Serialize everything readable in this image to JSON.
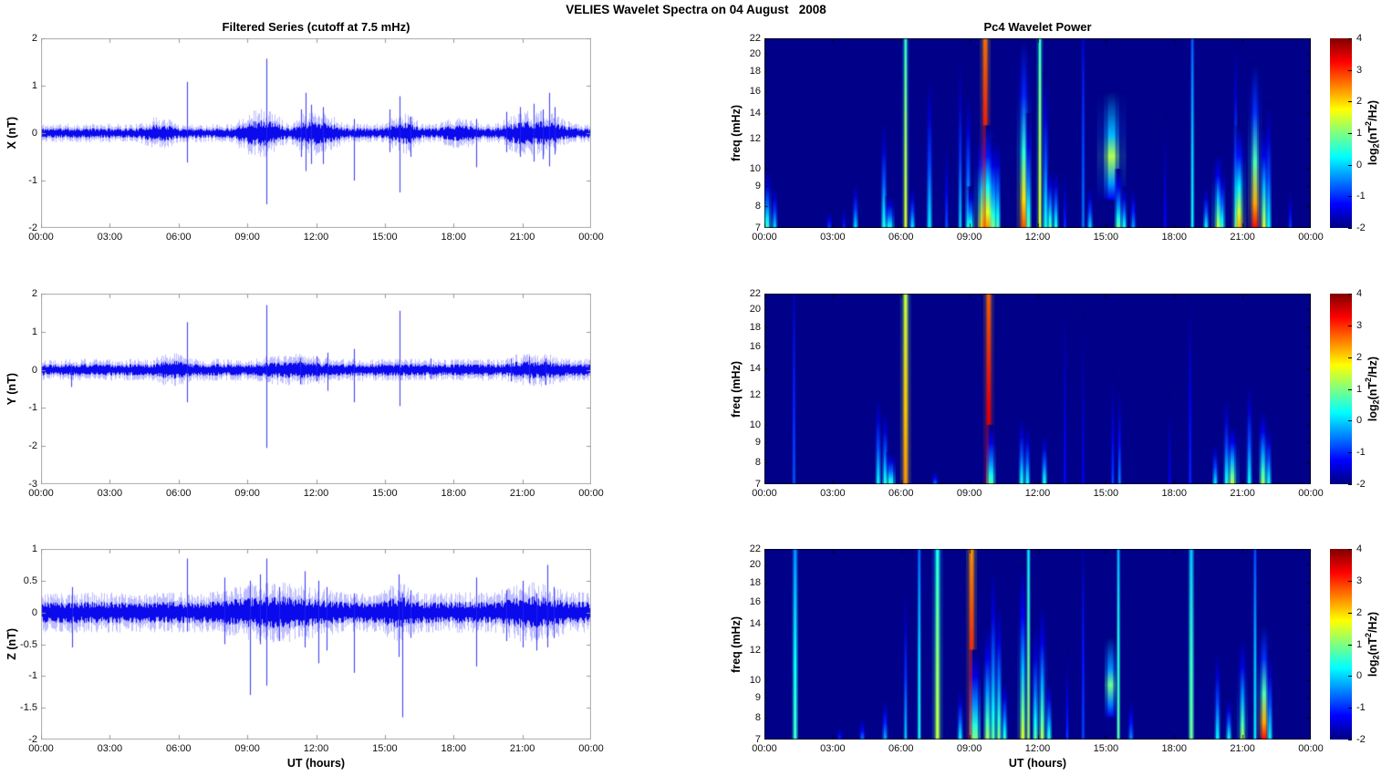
{
  "figure_title": "VELIES Wavelet Spectra on 04 August   2008",
  "left": {
    "title": "Filtered Series (cutoff at 7.5 mHz)",
    "xlabel": "UT (hours)"
  },
  "right": {
    "title": "Pc4 Wavelet Power",
    "xlabel": "UT (hours)",
    "ylabel": "freq (mHz)"
  },
  "xticks": {
    "hours": [
      0,
      3,
      6,
      9,
      12,
      15,
      18,
      21,
      24
    ],
    "labels": [
      "00:00",
      "03:00",
      "06:00",
      "09:00",
      "12:00",
      "15:00",
      "18:00",
      "21:00",
      "00:00"
    ]
  },
  "colorbar": {
    "label_prefix": "log",
    "label_sub": "2",
    "label_mid": "(nT",
    "label_sup": "2",
    "label_suffix": "/Hz)",
    "ticks": [
      4,
      3,
      2,
      1,
      0,
      -1,
      -2
    ],
    "range": [
      -2,
      4
    ],
    "gradient": [
      [
        "#000080",
        0
      ],
      [
        "#0000ff",
        12.5
      ],
      [
        "#00ffff",
        37.5
      ],
      [
        "#ffff00",
        62.5
      ],
      [
        "#ff0000",
        87.5
      ],
      [
        "#800000",
        100
      ]
    ]
  },
  "colors": {
    "series": "#0000ee",
    "axis_frame": "#aaaaaa",
    "spectrogram_bg": "#000091",
    "tick_text": "#111111"
  },
  "chart_data": [
    {
      "type": "line",
      "component": "X",
      "title": "Filtered Series (cutoff at 7.5 mHz)",
      "ylabel": "X (nT)",
      "ylim": [
        -2,
        2
      ],
      "yticks": [
        2,
        1,
        0,
        -1,
        -2
      ],
      "xlabel": "",
      "units": "nT",
      "noise": {
        "seed": 11,
        "base": 0.075,
        "bumps": [
          [
            4.3,
            6.0,
            0.055
          ],
          [
            8.3,
            10.8,
            0.12
          ],
          [
            10.8,
            13.2,
            0.11
          ],
          [
            15.0,
            16.6,
            0.09
          ],
          [
            17.3,
            19.2,
            0.05
          ],
          [
            19.8,
            23.2,
            0.11
          ]
        ]
      },
      "spike_fields": "[t_hours, max_nT, min_nT]",
      "spikes": [
        [
          6.35,
          1.08,
          -0.62
        ],
        [
          9.85,
          1.57,
          -1.5
        ],
        [
          11.35,
          0.5,
          -0.5
        ],
        [
          11.55,
          0.85,
          -0.8
        ],
        [
          11.8,
          0.6,
          -0.65
        ],
        [
          12.3,
          0.55,
          -0.65
        ],
        [
          13.65,
          0.3,
          -1.0
        ],
        [
          15.2,
          0.5,
          -0.4
        ],
        [
          15.65,
          0.78,
          -1.25
        ],
        [
          16.1,
          0.35,
          -0.5
        ],
        [
          19.0,
          0.3,
          -0.72
        ],
        [
          20.3,
          0.45,
          -0.4
        ],
        [
          20.9,
          0.55,
          -0.5
        ],
        [
          21.5,
          0.62,
          -0.6
        ],
        [
          21.9,
          0.5,
          -0.55
        ],
        [
          22.15,
          0.85,
          -0.7
        ],
        [
          22.4,
          0.55,
          -0.45
        ]
      ]
    },
    {
      "type": "line",
      "component": "Y",
      "title": "",
      "ylabel": "Y (nT)",
      "ylim": [
        -3,
        2
      ],
      "yticks": [
        2,
        1,
        0,
        -1,
        -2,
        -3
      ],
      "xlabel": "",
      "units": "nT",
      "noise": {
        "seed": 22,
        "base": 0.11,
        "bumps": [
          [
            4.8,
            6.6,
            0.06
          ],
          [
            9.3,
            12.8,
            0.05
          ],
          [
            20.0,
            23.0,
            0.06
          ]
        ]
      },
      "spike_fields": "[t_hours, max_nT, min_nT]",
      "spikes": [
        [
          1.3,
          0.15,
          -0.45
        ],
        [
          6.35,
          1.25,
          -0.85
        ],
        [
          9.85,
          1.7,
          -2.05
        ],
        [
          11.3,
          0.32,
          -0.38
        ],
        [
          12.0,
          0.35,
          -0.3
        ],
        [
          12.5,
          0.45,
          -0.55
        ],
        [
          13.65,
          0.55,
          -0.85
        ],
        [
          15.65,
          1.55,
          -0.95
        ],
        [
          17.0,
          0.3,
          -0.25
        ],
        [
          20.5,
          0.3,
          -0.3
        ],
        [
          21.3,
          0.35,
          -0.35
        ],
        [
          22.0,
          0.3,
          -0.4
        ]
      ]
    },
    {
      "type": "line",
      "component": "Z",
      "title": "",
      "ylabel": "Z (nT)",
      "ylim": [
        -2,
        1
      ],
      "yticks": [
        1,
        0.5,
        0,
        -0.5,
        -1,
        -1.5,
        -2
      ],
      "xlabel": "UT (hours)",
      "units": "nT",
      "noise": {
        "seed": 33,
        "base": 0.12,
        "bumps": [
          [
            7.5,
            13.0,
            0.06
          ],
          [
            14.8,
            16.5,
            0.055
          ],
          [
            19.8,
            23.0,
            0.06
          ]
        ]
      },
      "spike_fields": "[t_hours, max_nT, min_nT]",
      "spikes": [
        [
          1.35,
          0.4,
          -0.55
        ],
        [
          6.35,
          0.85,
          -0.3
        ],
        [
          8.0,
          0.55,
          -0.5
        ],
        [
          9.1,
          0.5,
          -1.3
        ],
        [
          9.55,
          0.6,
          -0.5
        ],
        [
          9.85,
          0.85,
          -1.15
        ],
        [
          10.4,
          0.4,
          -0.45
        ],
        [
          11.5,
          0.65,
          -0.55
        ],
        [
          12.1,
          0.5,
          -0.8
        ],
        [
          12.45,
          0.4,
          -0.6
        ],
        [
          13.65,
          0.3,
          -0.95
        ],
        [
          15.6,
          0.6,
          -0.7
        ],
        [
          15.75,
          0.3,
          -1.65
        ],
        [
          16.1,
          0.35,
          -0.4
        ],
        [
          19.0,
          0.55,
          -0.85
        ],
        [
          20.3,
          0.35,
          -0.45
        ],
        [
          21.0,
          0.5,
          -0.55
        ],
        [
          21.6,
          0.3,
          -0.6
        ],
        [
          22.1,
          0.75,
          -0.55
        ],
        [
          22.35,
          0.4,
          -0.4
        ]
      ]
    },
    {
      "type": "heatmap",
      "component": "X",
      "title": "Pc4 Wavelet Power",
      "ylabel": "freq (mHz)",
      "flim": [
        7,
        22
      ],
      "fticks": [
        22,
        20,
        18,
        16,
        14,
        12,
        10,
        9,
        8,
        7
      ],
      "clim": [
        -2,
        4
      ],
      "yscale": "log",
      "streak_fields": "[t_hours, f_top_mHz, peak_log2_power, width_px, kind(t=taper,l=full-line,b=blob), f_bottom_mHz?]",
      "streaks": [
        [
          0.1,
          10,
          0.6,
          5,
          "t"
        ],
        [
          0.45,
          9,
          0.1,
          3,
          "t"
        ],
        [
          2.85,
          7.8,
          -0.8,
          3,
          "t"
        ],
        [
          3.5,
          8,
          -0.9,
          2,
          "t"
        ],
        [
          4.0,
          9.2,
          0.1,
          3,
          "t"
        ],
        [
          5.25,
          13.5,
          0.5,
          3,
          "t"
        ],
        [
          5.5,
          8.5,
          0.4,
          5,
          "t"
        ],
        [
          6.2,
          22,
          1.6,
          2,
          "l"
        ],
        [
          6.5,
          9,
          0.2,
          3,
          "t"
        ],
        [
          7.25,
          18,
          0.2,
          3,
          "t"
        ],
        [
          8.0,
          12,
          -0.7,
          2,
          "t"
        ],
        [
          8.6,
          20,
          0.1,
          2,
          "t"
        ],
        [
          8.95,
          16,
          0.4,
          3,
          "t"
        ],
        [
          9.05,
          9,
          0.6,
          4,
          "t"
        ],
        [
          9.6,
          12,
          2.0,
          5,
          "t"
        ],
        [
          9.7,
          22,
          3.6,
          3,
          "l"
        ],
        [
          9.85,
          13,
          2.4,
          6,
          "t"
        ],
        [
          10.05,
          12,
          1.0,
          4,
          "t"
        ],
        [
          10.25,
          12,
          0.7,
          3,
          "t"
        ],
        [
          11.4,
          22,
          2.8,
          4,
          "t"
        ],
        [
          11.6,
          14,
          0.8,
          3,
          "t"
        ],
        [
          12.1,
          22,
          1.6,
          2,
          "l"
        ],
        [
          12.35,
          18,
          0.4,
          3,
          "t"
        ],
        [
          12.55,
          10,
          0.8,
          3,
          "t"
        ],
        [
          12.8,
          10,
          0.5,
          3,
          "t"
        ],
        [
          13.2,
          10,
          -0.9,
          2,
          "t"
        ],
        [
          14.0,
          22,
          -0.5,
          2,
          "l"
        ],
        [
          14.3,
          9,
          0.1,
          3,
          "t"
        ],
        [
          15.25,
          16,
          1.3,
          8,
          "b",
          8.3
        ],
        [
          15.55,
          10,
          0.9,
          4,
          "t"
        ],
        [
          15.8,
          9,
          0.5,
          3,
          "t"
        ],
        [
          16.2,
          9,
          -0.3,
          3,
          "t"
        ],
        [
          17.6,
          14,
          -1.2,
          2,
          "t"
        ],
        [
          18.8,
          22,
          0.3,
          2,
          "l"
        ],
        [
          19.4,
          9,
          0.3,
          3,
          "t"
        ],
        [
          19.95,
          11,
          1.5,
          4,
          "t"
        ],
        [
          20.1,
          10,
          0.6,
          3,
          "t"
        ],
        [
          20.7,
          22,
          0.4,
          2,
          "t"
        ],
        [
          20.85,
          13,
          2.2,
          4,
          "t"
        ],
        [
          21.55,
          19,
          3.2,
          4,
          "t"
        ],
        [
          21.95,
          13,
          1.6,
          3,
          "t"
        ],
        [
          22.15,
          15,
          0.3,
          3,
          "t"
        ],
        [
          23.1,
          9,
          -0.8,
          2,
          "t"
        ]
      ]
    },
    {
      "type": "heatmap",
      "component": "Y",
      "title": "",
      "ylabel": "freq (mHz)",
      "flim": [
        7,
        22
      ],
      "fticks": [
        22,
        20,
        18,
        16,
        14,
        12,
        10,
        9,
        8,
        7
      ],
      "clim": [
        -2,
        4
      ],
      "yscale": "log",
      "streak_fields": "[t_hours, f_top_mHz, peak_log2_power, width_px, kind, f_bottom_mHz?]",
      "streaks": [
        [
          1.3,
          22,
          -0.7,
          2,
          "l"
        ],
        [
          5.0,
          12,
          0.3,
          3,
          "t"
        ],
        [
          5.3,
          11,
          0.5,
          3,
          "t"
        ],
        [
          5.55,
          8.5,
          0.6,
          5,
          "t"
        ],
        [
          6.2,
          22,
          2.4,
          3,
          "l"
        ],
        [
          7.5,
          7.6,
          -0.5,
          3,
          "t"
        ],
        [
          9.85,
          22,
          3.7,
          3,
          "l"
        ],
        [
          9.95,
          10,
          0.8,
          5,
          "t"
        ],
        [
          11.3,
          10.5,
          0.5,
          3,
          "t"
        ],
        [
          11.55,
          10,
          0.4,
          3,
          "t"
        ],
        [
          12.3,
          9.5,
          0.5,
          3,
          "t"
        ],
        [
          13.2,
          22,
          -1.2,
          2,
          "l"
        ],
        [
          14.0,
          20,
          -1.3,
          2,
          "l"
        ],
        [
          15.3,
          14,
          -0.8,
          2,
          "t"
        ],
        [
          15.6,
          13,
          -0.4,
          2,
          "t"
        ],
        [
          17.8,
          12,
          -1.3,
          2,
          "t"
        ],
        [
          18.7,
          22,
          -1.0,
          2,
          "l"
        ],
        [
          19.8,
          9,
          0.2,
          3,
          "t"
        ],
        [
          20.3,
          12,
          0.4,
          3,
          "t"
        ],
        [
          20.55,
          10,
          1.4,
          4,
          "t"
        ],
        [
          21.3,
          13,
          0.3,
          3,
          "t"
        ],
        [
          21.9,
          11,
          1.2,
          4,
          "t"
        ],
        [
          22.15,
          10,
          0.4,
          3,
          "t"
        ]
      ]
    },
    {
      "type": "heatmap",
      "component": "Z",
      "title": "",
      "ylabel": "freq (mHz)",
      "flim": [
        7,
        22
      ],
      "fticks": [
        22,
        20,
        18,
        16,
        14,
        12,
        10,
        9,
        8,
        7
      ],
      "clim": [
        -2,
        4
      ],
      "yscale": "log",
      "streak_fields": "[t_hours, f_top_mHz, peak_log2_power, width_px, kind, f_bottom_mHz?]",
      "streaks": [
        [
          1.35,
          22,
          0.6,
          3,
          "l"
        ],
        [
          3.3,
          7.6,
          -0.9,
          3,
          "t"
        ],
        [
          4.3,
          8,
          -0.5,
          3,
          "t"
        ],
        [
          5.3,
          9,
          -0.2,
          3,
          "t"
        ],
        [
          6.2,
          18,
          0.0,
          2,
          "t"
        ],
        [
          6.8,
          22,
          0.4,
          2,
          "l"
        ],
        [
          7.6,
          22,
          1.4,
          3,
          "l"
        ],
        [
          8.6,
          9.5,
          0.3,
          3,
          "t"
        ],
        [
          9.1,
          22,
          3.4,
          3,
          "l"
        ],
        [
          9.25,
          12,
          1.0,
          6,
          "t"
        ],
        [
          9.8,
          14,
          1.2,
          4,
          "t"
        ],
        [
          10.05,
          20,
          0.8,
          3,
          "t"
        ],
        [
          10.3,
          16,
          1.0,
          3,
          "t"
        ],
        [
          10.55,
          10,
          0.6,
          3,
          "t"
        ],
        [
          11.35,
          20,
          1.6,
          3,
          "t"
        ],
        [
          11.6,
          22,
          1.2,
          2,
          "l"
        ],
        [
          11.9,
          14,
          0.8,
          3,
          "t"
        ],
        [
          12.2,
          16,
          1.3,
          3,
          "t"
        ],
        [
          12.5,
          10,
          0.6,
          3,
          "t"
        ],
        [
          13.3,
          12,
          -0.9,
          2,
          "t"
        ],
        [
          14.0,
          22,
          -0.8,
          2,
          "l"
        ],
        [
          15.2,
          13,
          0.9,
          6,
          "b",
          8.0
        ],
        [
          15.55,
          22,
          0.8,
          2,
          "l"
        ],
        [
          16.1,
          9,
          -0.4,
          3,
          "t"
        ],
        [
          18.75,
          22,
          0.9,
          3,
          "l"
        ],
        [
          19.9,
          12,
          0.3,
          3,
          "t"
        ],
        [
          20.4,
          9,
          0.4,
          3,
          "t"
        ],
        [
          21.0,
          13,
          1.3,
          3,
          "t"
        ],
        [
          21.55,
          22,
          0.2,
          2,
          "l"
        ],
        [
          21.95,
          14,
          3.2,
          4,
          "t"
        ],
        [
          22.2,
          12,
          0.3,
          3,
          "t"
        ]
      ]
    }
  ]
}
